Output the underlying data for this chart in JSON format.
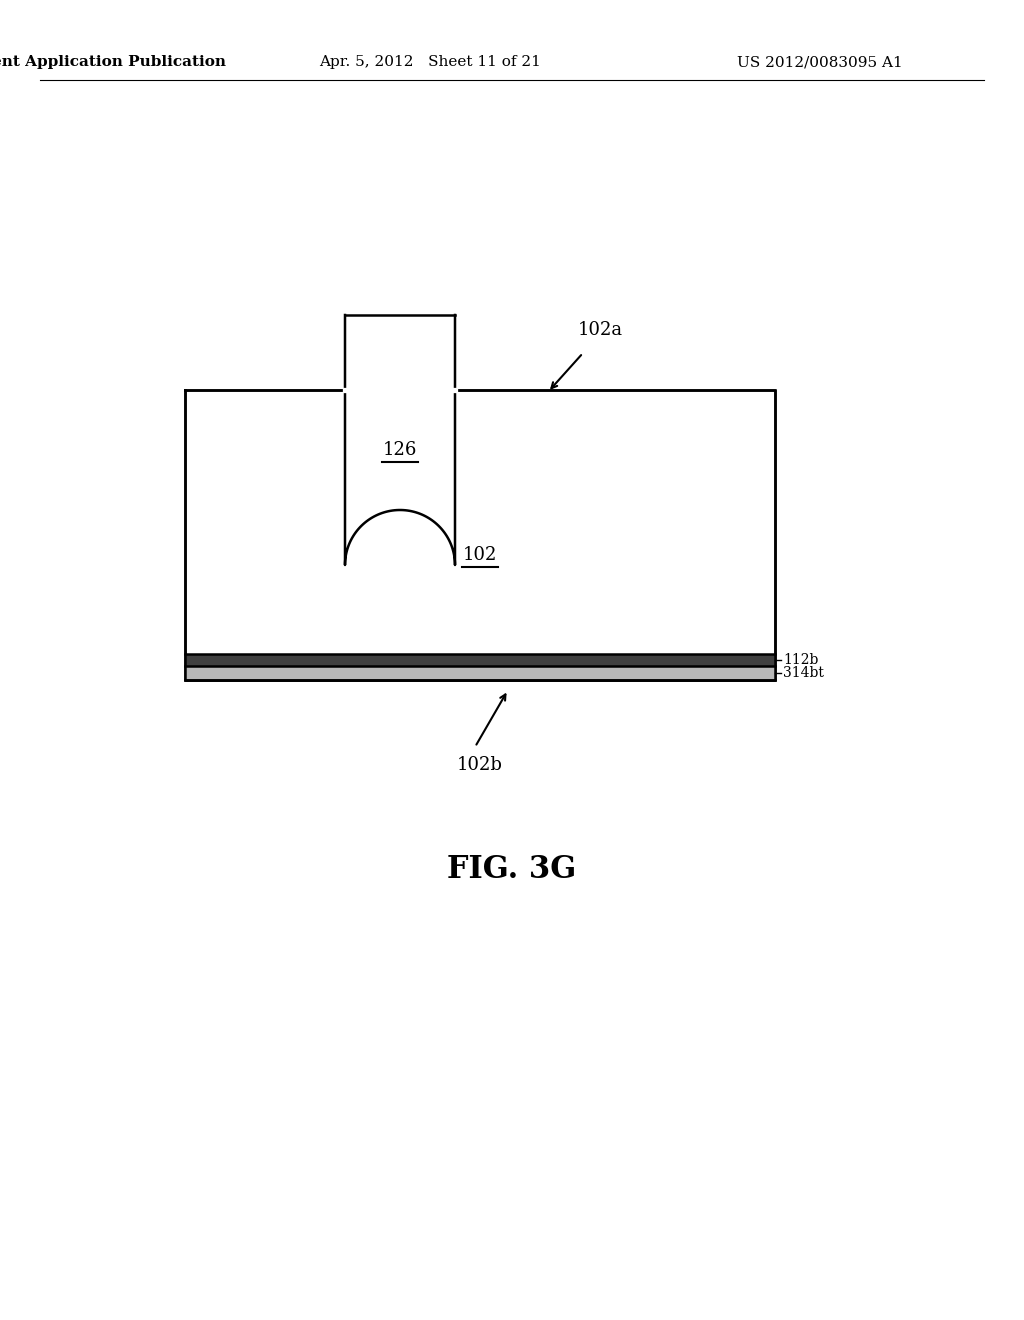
{
  "background_color": "#ffffff",
  "header_left": "Patent Application Publication",
  "header_mid": "Apr. 5, 2012   Sheet 11 of 21",
  "header_right": "US 2012/0083095 A1",
  "fig_label": "FIG. 3G",
  "label_102a": "102a",
  "label_102": "102",
  "label_126": "126",
  "label_112b": "112b",
  "label_314bt": "314bt",
  "label_102b": "102b",
  "line_color": "#000000",
  "fill_color": "#ffffff",
  "text_color": "#000000",
  "header_fontsize": 11,
  "label_fontsize": 13,
  "fig_label_fontsize": 22
}
